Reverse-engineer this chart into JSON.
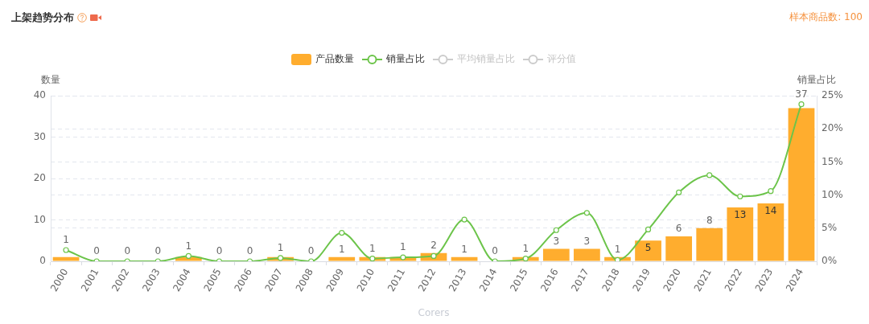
{
  "chart_data": {
    "type": "bar",
    "title": "上架趋势分布",
    "xlabel": "Corers",
    "ylabel": "数量",
    "y2label": "销量占比",
    "annotations": [
      "样本商品数: 100"
    ],
    "categories": [
      "2000",
      "2001",
      "2002",
      "2003",
      "2004",
      "2005",
      "2006",
      "2007",
      "2008",
      "2009",
      "2010",
      "2011",
      "2012",
      "2013",
      "2014",
      "2015",
      "2016",
      "2017",
      "2018",
      "2019",
      "2020",
      "2021",
      "2022",
      "2023",
      "2024"
    ],
    "series": [
      {
        "name": "产品数量",
        "color": "#ffad2e",
        "values": [
          1,
          0,
          0,
          0,
          1,
          0,
          0,
          1,
          0,
          1,
          1,
          1,
          2,
          1,
          0,
          1,
          3,
          3,
          1,
          5,
          6,
          8,
          13,
          14,
          37
        ],
        "value_labels": [
          "1",
          "0",
          "0",
          "0",
          "1",
          "0",
          "0",
          "1",
          "0",
          "1",
          "1",
          "1",
          "2",
          "1",
          "0",
          "1",
          "3",
          "3",
          "1",
          "5",
          "6",
          "8",
          "13",
          "14",
          "37"
        ]
      },
      {
        "name": "销量占比",
        "type": "line",
        "axis": "y2",
        "color": "#6cc44a",
        "values": [
          1.7,
          0,
          0,
          0,
          0.8,
          0,
          0,
          0.5,
          0,
          4.3,
          0.4,
          0.6,
          0.8,
          6.3,
          0,
          0.4,
          4.7,
          7.3,
          0.2,
          4.8,
          10.4,
          13,
          9.8,
          10.6,
          23.7
        ]
      },
      {
        "name": "平均销量占比",
        "type": "line",
        "axis": "y2",
        "color": "#cccccc",
        "values": [
          null,
          null,
          null,
          null,
          null,
          null,
          null,
          null,
          null,
          null,
          null,
          null,
          null,
          null,
          null,
          null,
          null,
          null,
          null,
          null,
          null,
          null,
          null,
          null,
          null
        ]
      },
      {
        "name": "评分值",
        "type": "line",
        "color": "#cccccc",
        "values": [
          null,
          null,
          null,
          null,
          null,
          null,
          null,
          null,
          null,
          null,
          null,
          null,
          null,
          null,
          null,
          null,
          null,
          null,
          null,
          null,
          null,
          null,
          null,
          null,
          null
        ]
      }
    ],
    "ylim": [
      0,
      40
    ],
    "yticks": [
      0,
      10,
      20,
      30,
      40
    ],
    "y2lim": [
      0,
      25
    ],
    "y2ticks": [
      {
        "value": 0,
        "label": "0%"
      },
      {
        "value": 5,
        "label": "5%"
      },
      {
        "value": 10,
        "label": "10%"
      },
      {
        "value": 15,
        "label": "15%"
      },
      {
        "value": 20,
        "label": "20%"
      },
      {
        "value": 25,
        "label": "25%"
      }
    ],
    "grid": "y",
    "legend": "top",
    "marker": "circle"
  }
}
